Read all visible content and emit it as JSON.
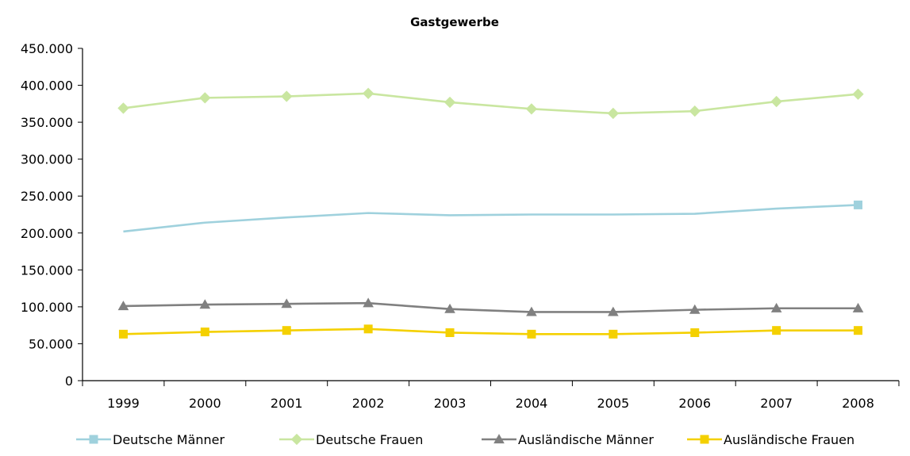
{
  "chart_data": {
    "type": "line",
    "title": "Gastgewerbe",
    "xlabel": "",
    "ylabel": "",
    "categories": [
      "1999",
      "2000",
      "2001",
      "2002",
      "2003",
      "2004",
      "2005",
      "2006",
      "2007",
      "2008"
    ],
    "ylim": [
      0,
      450000
    ],
    "yticks": [
      0,
      50000,
      100000,
      150000,
      200000,
      250000,
      300000,
      350000,
      400000,
      450000
    ],
    "ytick_labels": [
      "0",
      "50.000",
      "100.000",
      "150.000",
      "200.000",
      "250.000",
      "300.000",
      "350.000",
      "400.000",
      "450.000"
    ],
    "grid": false,
    "legend_position": "bottom",
    "series": [
      {
        "name": "Deutsche Männer",
        "color": "#9fd1dd",
        "marker": "square",
        "marker_last_only": true,
        "values": [
          202000,
          214000,
          221000,
          227000,
          224000,
          225000,
          225000,
          226000,
          233000,
          238000
        ]
      },
      {
        "name": "Deutsche Frauen",
        "color": "#c9e6a0",
        "marker": "diamond",
        "marker_last_only": false,
        "values": [
          369000,
          383000,
          385000,
          389000,
          377000,
          368000,
          362000,
          365000,
          378000,
          388000
        ]
      },
      {
        "name": "Ausländische Männer",
        "color": "#808080",
        "marker": "triangle",
        "marker_last_only": false,
        "values": [
          101000,
          103000,
          104000,
          105000,
          97000,
          93000,
          93000,
          96000,
          98000,
          98000
        ]
      },
      {
        "name": "Ausländische Frauen",
        "color": "#f4d000",
        "marker": "square",
        "marker_last_only": false,
        "values": [
          63000,
          66000,
          68000,
          70000,
          65000,
          63000,
          63000,
          65000,
          68000,
          68000
        ]
      }
    ]
  }
}
